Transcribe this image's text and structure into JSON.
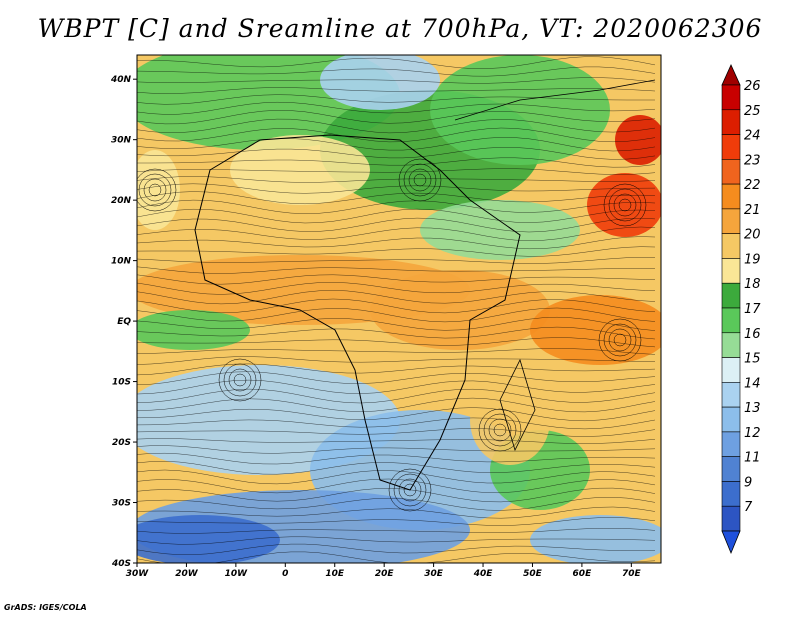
{
  "title": "WBPT [C] and Sreamline at 700hPa, VT: 2020062306",
  "credit": "GrADS: IGES/COLA",
  "map": {
    "lon_range": [
      -30,
      76
    ],
    "lat_range": [
      -40,
      44
    ],
    "lat_ticks": [
      {
        "value": 40,
        "label": "40N"
      },
      {
        "value": 30,
        "label": "30N"
      },
      {
        "value": 20,
        "label": "20N"
      },
      {
        "value": 10,
        "label": "10N"
      },
      {
        "value": 0,
        "label": "EQ"
      },
      {
        "value": -10,
        "label": "10S"
      },
      {
        "value": -20,
        "label": "20S"
      },
      {
        "value": -30,
        "label": "30S"
      },
      {
        "value": -40,
        "label": "40S"
      }
    ],
    "lon_ticks": [
      {
        "value": -30,
        "label": "30W"
      },
      {
        "value": -20,
        "label": "20W"
      },
      {
        "value": -10,
        "label": "10W"
      },
      {
        "value": 0,
        "label": "0"
      },
      {
        "value": 10,
        "label": "10E"
      },
      {
        "value": 20,
        "label": "20E"
      },
      {
        "value": 30,
        "label": "30E"
      },
      {
        "value": 40,
        "label": "40E"
      },
      {
        "value": 50,
        "label": "50E"
      },
      {
        "value": 60,
        "label": "60E"
      },
      {
        "value": 70,
        "label": "70E"
      }
    ]
  },
  "colorbar": {
    "labels": [
      "26",
      "25",
      "24",
      "23",
      "22",
      "21",
      "20",
      "19",
      "18",
      "17",
      "16",
      "15",
      "14",
      "13",
      "12",
      "11",
      "9",
      "7"
    ],
    "colors": [
      "#c80000",
      "#dc1e00",
      "#f03c0a",
      "#f0641e",
      "#f58c1e",
      "#f5a53c",
      "#f5c864",
      "#fae696",
      "#3caa3c",
      "#5ac85a",
      "#96dc96",
      "#dcf0f5",
      "#aad2f0",
      "#8cbeeb",
      "#6ea0e1",
      "#5082d2",
      "#3c6ecd",
      "#2d55c3"
    ],
    "top_color": "#a00000",
    "bottom_color": "#1e50dc"
  }
}
